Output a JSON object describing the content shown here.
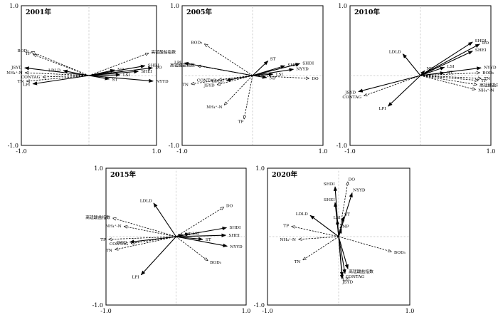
{
  "chart_data": [
    {
      "type": "biplot",
      "title": "2001年",
      "xlim": [
        -1.0,
        1.0
      ],
      "ylim": [
        -1.0,
        1.0
      ],
      "x_ticks": [
        "-1.0",
        "1.0"
      ],
      "y_ticks": [
        "1.0",
        "-1.0"
      ],
      "solid_arrows": [
        {
          "name": "JSYD",
          "x": -0.95,
          "y": 0.11
        },
        {
          "name": "LDLD",
          "x": -0.38,
          "y": 0.07
        },
        {
          "name": "LPI",
          "x": -0.83,
          "y": -0.12
        },
        {
          "name": "SHDI",
          "x": 0.83,
          "y": 0.14
        },
        {
          "name": "DO",
          "x": 0.94,
          "y": 0.11
        },
        {
          "name": "SHEI",
          "x": 0.73,
          "y": 0.06
        },
        {
          "name": "NP",
          "x": 0.38,
          "y": 0.08
        },
        {
          "name": "LSI",
          "x": 0.46,
          "y": 0.01
        },
        {
          "name": "ST",
          "x": 0.3,
          "y": -0.05
        },
        {
          "name": "NYYD",
          "x": 0.95,
          "y": -0.08
        }
      ],
      "dashed_arrows": [
        {
          "name": "BOD₅",
          "x": -0.85,
          "y": 0.34
        },
        {
          "name": "TP",
          "x": -0.82,
          "y": 0.3
        },
        {
          "name": "NH₄⁺-N",
          "x": -0.94,
          "y": 0.04
        },
        {
          "name": "CONTAG",
          "x": -0.68,
          "y": -0.02
        },
        {
          "name": "TN",
          "x": -0.92,
          "y": -0.08
        },
        {
          "name": "高锰酸盐指数",
          "x": 0.88,
          "y": 0.32
        }
      ]
    },
    {
      "type": "biplot",
      "title": "2005年",
      "xlim": [
        -1.0,
        1.0
      ],
      "ylim": [
        -1.0,
        1.0
      ],
      "x_ticks": [
        "-1.0",
        "1.0"
      ],
      "y_ticks": [
        "1.0",
        "-1.0"
      ],
      "solid_arrows": [
        {
          "name": "LPI",
          "x": -0.97,
          "y": 0.18
        },
        {
          "name": "LDLD",
          "x": -0.37,
          "y": -0.07
        },
        {
          "name": "ST",
          "x": 0.22,
          "y": 0.21
        },
        {
          "name": "SHEI",
          "x": 0.46,
          "y": 0.14
        },
        {
          "name": "SHDI",
          "x": 0.67,
          "y": 0.17
        },
        {
          "name": "NYYD",
          "x": 0.58,
          "y": 0.09
        },
        {
          "name": "LSI",
          "x": 0.29,
          "y": 0.02
        },
        {
          "name": "NP",
          "x": 0.2,
          "y": -0.03
        }
      ],
      "dashed_arrows": [
        {
          "name": "BOD₅",
          "x": -0.68,
          "y": 0.45
        },
        {
          "name": "高锰酸盐指数",
          "x": -0.78,
          "y": 0.14
        },
        {
          "name": "TN",
          "x": -0.87,
          "y": -0.12
        },
        {
          "name": "CONTAG",
          "x": -0.48,
          "y": -0.06
        },
        {
          "name": "JSYD",
          "x": -0.5,
          "y": -0.13
        },
        {
          "name": "NH₄⁺-N",
          "x": -0.4,
          "y": -0.42
        },
        {
          "name": "TP",
          "x": -0.12,
          "y": -0.62
        },
        {
          "name": "DO",
          "x": 0.8,
          "y": -0.04
        }
      ]
    },
    {
      "type": "biplot",
      "title": "2010年",
      "xlim": [
        -1.0,
        1.0
      ],
      "ylim": [
        -1.0,
        1.0
      ],
      "x_ticks": [
        "-1.0",
        "1.0"
      ],
      "y_ticks": [
        "1.0",
        "-1.0"
      ],
      "solid_arrows": [
        {
          "name": "LDLD",
          "x": -0.25,
          "y": 0.31
        },
        {
          "name": "NP",
          "x": 0.06,
          "y": 0.07
        },
        {
          "name": "SHDI",
          "x": 0.74,
          "y": 0.48
        },
        {
          "name": "DO",
          "x": 0.84,
          "y": 0.45
        },
        {
          "name": "SHEI",
          "x": 0.74,
          "y": 0.35
        },
        {
          "name": "LSI",
          "x": 0.34,
          "y": 0.12
        },
        {
          "name": "NYYD",
          "x": 0.86,
          "y": 0.11
        },
        {
          "name": "ST",
          "x": 0.34,
          "y": 0.04
        },
        {
          "name": "JSYD",
          "x": -0.88,
          "y": -0.23
        },
        {
          "name": "LPI",
          "x": -0.46,
          "y": -0.44
        }
      ],
      "dashed_arrows": [
        {
          "name": "BOD₅",
          "x": 0.84,
          "y": 0.04
        },
        {
          "name": "TN",
          "x": 0.86,
          "y": -0.04
        },
        {
          "name": "TP",
          "x": 0.82,
          "y": -0.07
        },
        {
          "name": "高锰酸盐指数",
          "x": 0.8,
          "y": -0.13
        },
        {
          "name": "NH₄⁺-N",
          "x": 0.78,
          "y": -0.2
        },
        {
          "name": "CONTAG",
          "x": -0.8,
          "y": -0.29
        }
      ]
    },
    {
      "type": "biplot",
      "title": "2015年",
      "xlim": [
        -1.0,
        1.0
      ],
      "ylim": [
        -1.0,
        1.0
      ],
      "x_ticks": [
        "-1.0",
        "1.0"
      ],
      "y_ticks": [
        "1.0",
        "-1.0"
      ],
      "solid_arrows": [
        {
          "name": "LDLD",
          "x": -0.32,
          "y": 0.49
        },
        {
          "name": "NP",
          "x": 0.09,
          "y": 0.03
        },
        {
          "name": "LSI",
          "x": 0.19,
          "y": 0.04
        },
        {
          "name": "SHDI",
          "x": 0.72,
          "y": 0.13
        },
        {
          "name": "SHEI",
          "x": 0.71,
          "y": 0.02
        },
        {
          "name": "ST",
          "x": 0.38,
          "y": -0.04
        },
        {
          "name": "NYYD",
          "x": 0.73,
          "y": -0.14
        },
        {
          "name": "JSYD",
          "x": -0.66,
          "y": -0.08
        },
        {
          "name": "LPI",
          "x": -0.5,
          "y": -0.56
        }
      ],
      "dashed_arrows": [
        {
          "name": "DO",
          "x": 0.68,
          "y": 0.43
        },
        {
          "name": "高锰酸盐指数",
          "x": -0.9,
          "y": 0.27
        },
        {
          "name": "NH₄⁺-N",
          "x": -0.74,
          "y": 0.15
        },
        {
          "name": "TP",
          "x": -0.96,
          "y": -0.04
        },
        {
          "name": "CONTAG",
          "x": -0.64,
          "y": -0.1
        },
        {
          "name": "TN",
          "x": -0.87,
          "y": -0.19
        },
        {
          "name": "BOD₅",
          "x": 0.45,
          "y": -0.35
        }
      ]
    },
    {
      "type": "biplot",
      "title": "2020年",
      "xlim": [
        -1.0,
        1.0
      ],
      "ylim": [
        -1.0,
        1.0
      ],
      "x_ticks": [
        "-1.0",
        "1.0"
      ],
      "y_ticks": [
        "1.0",
        "-1.0"
      ],
      "solid_arrows": [
        {
          "name": "SHDI",
          "x": -0.05,
          "y": 0.73
        },
        {
          "name": "SHEI",
          "x": -0.05,
          "y": 0.5
        },
        {
          "name": "NYYD",
          "x": 0.19,
          "y": 0.64
        },
        {
          "name": "LSI",
          "x": -0.02,
          "y": 0.24
        },
        {
          "name": "ST",
          "x": 0.07,
          "y": 0.29
        },
        {
          "name": "NP",
          "x": 0.04,
          "y": 0.11
        },
        {
          "name": "LDLD",
          "x": -0.4,
          "y": 0.31
        },
        {
          "name": "LPI",
          "x": 0.05,
          "y": -0.58
        },
        {
          "name": "JSYD",
          "x": 0.05,
          "y": -0.62
        },
        {
          "name": "CONTAG",
          "x": 0.09,
          "y": -0.54
        },
        {
          "name": "高锰酸盐指数",
          "x": 0.13,
          "y": -0.47
        }
      ],
      "dashed_arrows": [
        {
          "name": "DO",
          "x": 0.13,
          "y": 0.8
        },
        {
          "name": "TP",
          "x": -0.66,
          "y": 0.15
        },
        {
          "name": "NH₄⁺-N",
          "x": -0.56,
          "y": -0.04
        },
        {
          "name": "TN",
          "x": -0.5,
          "y": -0.34
        },
        {
          "name": "BOD₅",
          "x": 0.74,
          "y": -0.22
        }
      ]
    }
  ]
}
